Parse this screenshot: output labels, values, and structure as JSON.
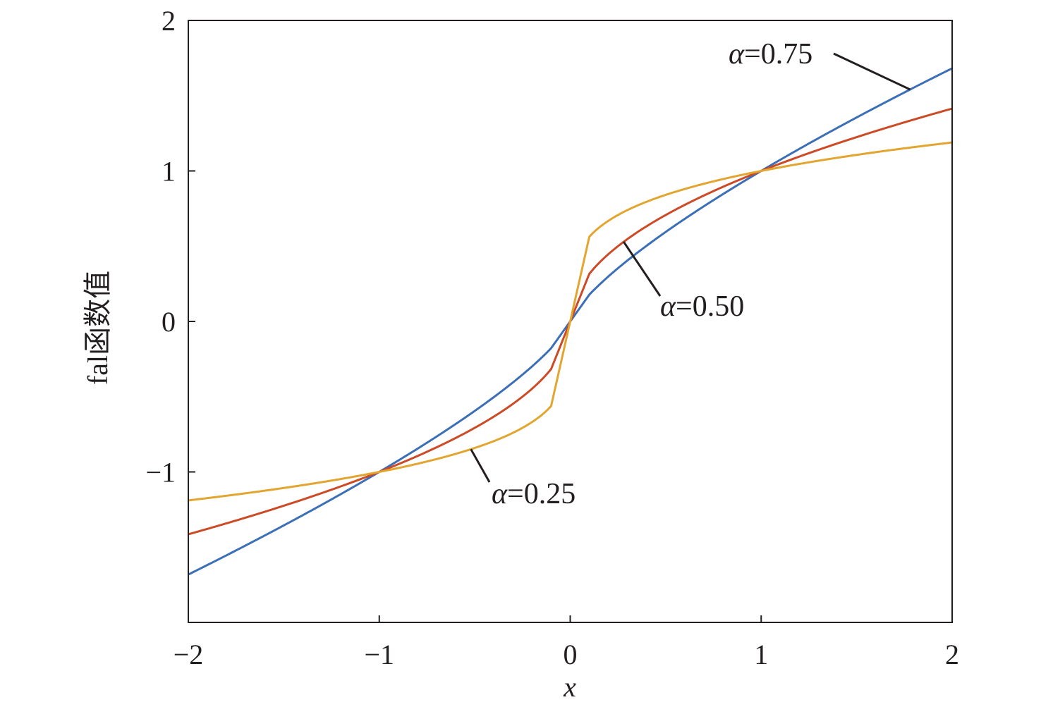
{
  "chart_data": {
    "type": "line",
    "title": "",
    "xlabel": "x",
    "ylabel": "fal函数值",
    "xlim": [
      -2,
      2
    ],
    "ylim": [
      -2,
      2
    ],
    "xticks": [
      -2,
      -1,
      0,
      1,
      2
    ],
    "xtick_labels": [
      "−2",
      "−1",
      "0",
      "1",
      "2"
    ],
    "yticks": [
      -1,
      0,
      1,
      2
    ],
    "ytick_labels": [
      "−1",
      "0",
      "1",
      "2"
    ],
    "grid": false,
    "delta": 0.1,
    "series": [
      {
        "name": "α=0.75",
        "alpha": 0.75,
        "color": "#3b6fb6",
        "x": [
          -2.0,
          -1.5,
          -1.0,
          -0.5,
          -0.1,
          0.0,
          0.1,
          0.5,
          1.0,
          1.5,
          2.0
        ],
        "y": [
          -1.68,
          -1.36,
          -1.0,
          -0.59,
          -0.18,
          0.0,
          0.18,
          0.59,
          1.0,
          1.36,
          1.68
        ]
      },
      {
        "name": "α=0.50",
        "alpha": 0.5,
        "color": "#cc4a25",
        "x": [
          -2.0,
          -1.5,
          -1.0,
          -0.5,
          -0.1,
          0.0,
          0.1,
          0.5,
          1.0,
          1.5,
          2.0
        ],
        "y": [
          -1.41,
          -1.22,
          -1.0,
          -0.71,
          -0.32,
          0.0,
          0.32,
          0.71,
          1.0,
          1.22,
          1.41
        ]
      },
      {
        "name": "α=0.25",
        "alpha": 0.25,
        "color": "#e2a530",
        "x": [
          -2.0,
          -1.5,
          -1.0,
          -0.5,
          -0.1,
          0.0,
          0.1,
          0.5,
          1.0,
          1.5,
          2.0
        ],
        "y": [
          -1.19,
          -1.11,
          -1.0,
          -0.84,
          -0.56,
          0.0,
          0.56,
          0.84,
          1.0,
          1.11,
          1.19
        ]
      }
    ],
    "annotations": [
      {
        "series": "α=0.75",
        "prefix": "α",
        "value": "=0.75",
        "point_x": 1.78
      },
      {
        "series": "α=0.50",
        "prefix": "α",
        "value": "=0.50",
        "point_x": 0.28
      },
      {
        "series": "α=0.25",
        "prefix": "α",
        "value": "=0.25",
        "point_x": -0.52
      }
    ]
  }
}
